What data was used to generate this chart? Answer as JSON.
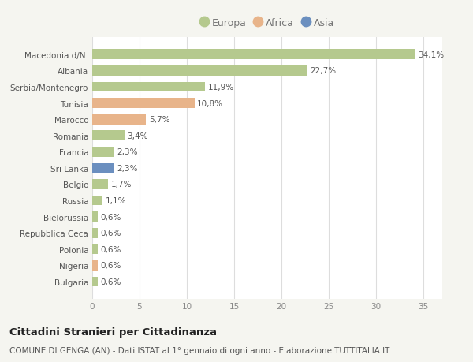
{
  "categories": [
    "Macedonia d/N.",
    "Albania",
    "Serbia/Montenegro",
    "Tunisia",
    "Marocco",
    "Romania",
    "Francia",
    "Sri Lanka",
    "Belgio",
    "Russia",
    "Bielorussia",
    "Repubblica Ceca",
    "Polonia",
    "Nigeria",
    "Bulgaria"
  ],
  "values": [
    34.1,
    22.7,
    11.9,
    10.8,
    5.7,
    3.4,
    2.3,
    2.3,
    1.7,
    1.1,
    0.6,
    0.6,
    0.6,
    0.6,
    0.6
  ],
  "labels": [
    "34,1%",
    "22,7%",
    "11,9%",
    "10,8%",
    "5,7%",
    "3,4%",
    "2,3%",
    "2,3%",
    "1,7%",
    "1,1%",
    "0,6%",
    "0,6%",
    "0,6%",
    "0,6%",
    "0,6%"
  ],
  "colors": [
    "#b5c98e",
    "#b5c98e",
    "#b5c98e",
    "#e8b48a",
    "#e8b48a",
    "#b5c98e",
    "#b5c98e",
    "#6b8fbf",
    "#b5c98e",
    "#b5c98e",
    "#b5c98e",
    "#b5c98e",
    "#b5c98e",
    "#e8b48a",
    "#b5c98e"
  ],
  "legend_labels": [
    "Europa",
    "Africa",
    "Asia"
  ],
  "legend_colors": [
    "#b5c98e",
    "#e8b48a",
    "#6b8fbf"
  ],
  "xlim": [
    0,
    37
  ],
  "xticks": [
    0,
    5,
    10,
    15,
    20,
    25,
    30,
    35
  ],
  "title": "Cittadini Stranieri per Cittadinanza",
  "subtitle": "COMUNE DI GENGA (AN) - Dati ISTAT al 1° gennaio di ogni anno - Elaborazione TUTTITALIA.IT",
  "bg_color": "#f5f5f0",
  "plot_bg_color": "#ffffff",
  "grid_color": "#dddddd",
  "bar_height": 0.62,
  "label_fontsize": 7.5,
  "tick_fontsize": 7.5,
  "legend_fontsize": 9.0,
  "title_fontsize": 9.5,
  "subtitle_fontsize": 7.5
}
